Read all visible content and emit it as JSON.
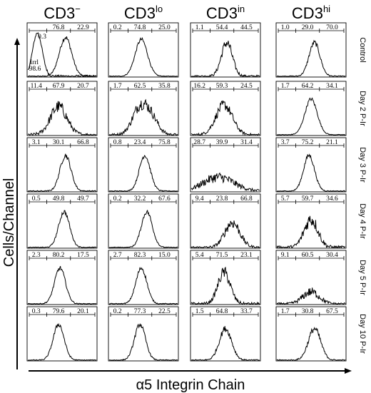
{
  "chart_data": {
    "type": "histogram-grid",
    "column_headers": [
      {
        "base": "CD3",
        "sup": "−"
      },
      {
        "base": "CD3",
        "sup": "lo"
      },
      {
        "base": "CD3",
        "sup": "in"
      },
      {
        "base": "CD3",
        "sup": "hi"
      }
    ],
    "row_labels": [
      "Control",
      "Day 2 P-Ir",
      "Day 3 P-Ir",
      "Day 4 P-Ir",
      "Day 5 P-Ir",
      "Day 10 P-Ir"
    ],
    "xlabel": "α5 Integrin Chain",
    "ylabel": "Cells/Channel",
    "panels": [
      [
        {
          "values": [
            "76.8",
            "22.9"
          ],
          "peak_pos": 0.55,
          "height": 0.72,
          "width": 0.09,
          "noise": 0.05,
          "irrelevant": {
            "labels": [
              "0.3",
              "Irrl",
              "98.6"
            ]
          }
        },
        {
          "values": [
            "0.2",
            "74.8",
            "25.0"
          ],
          "peak_pos": 0.47,
          "height": 0.68,
          "width": 0.09,
          "noise": 0.04
        },
        {
          "values": [
            "1.1",
            "54.4",
            "44.5"
          ],
          "peak_pos": 0.52,
          "height": 0.62,
          "width": 0.08,
          "noise": 0.12
        },
        {
          "values": [
            "1.0",
            "29.0",
            "70.0"
          ],
          "peak_pos": 0.55,
          "height": 0.62,
          "width": 0.08,
          "noise": 0.06
        }
      ],
      [
        {
          "values": [
            "11.4",
            "67.9",
            "20.7"
          ],
          "peak_pos": 0.45,
          "height": 0.52,
          "width": 0.12,
          "noise": 0.18
        },
        {
          "values": [
            "1.7",
            "62.5",
            "35.8"
          ],
          "peak_pos": 0.45,
          "height": 0.5,
          "width": 0.11,
          "noise": 0.16,
          "shoulder": 0.62
        },
        {
          "values": [
            "16.2",
            "59.3",
            "24.5"
          ],
          "peak_pos": 0.48,
          "height": 0.55,
          "width": 0.12,
          "noise": 0.14
        },
        {
          "values": [
            "1.7",
            "64.2",
            "34.1"
          ],
          "peak_pos": 0.5,
          "height": 0.66,
          "width": 0.09,
          "noise": 0.04
        }
      ],
      [
        {
          "values": [
            "3.1",
            "30.1",
            "66.8"
          ],
          "peak_pos": 0.55,
          "height": 0.66,
          "width": 0.08,
          "noise": 0.06
        },
        {
          "values": [
            "0.8",
            "23.4",
            "75.8"
          ],
          "peak_pos": 0.52,
          "height": 0.66,
          "width": 0.08,
          "noise": 0.05
        },
        {
          "values": [
            "28.7",
            "39.9",
            "31.4"
          ],
          "peak_pos": 0.4,
          "height": 0.26,
          "width": 0.22,
          "noise": 0.28
        },
        {
          "values": [
            "3.7",
            "75.2",
            "21.1"
          ],
          "peak_pos": 0.47,
          "height": 0.66,
          "width": 0.08,
          "noise": 0.05
        }
      ],
      [
        {
          "values": [
            "0.5",
            "49.8",
            "49.7"
          ],
          "peak_pos": 0.53,
          "height": 0.66,
          "width": 0.08,
          "noise": 0.05
        },
        {
          "values": [
            "0.2",
            "32.2",
            "67.6"
          ],
          "peak_pos": 0.55,
          "height": 0.66,
          "width": 0.08,
          "noise": 0.05
        },
        {
          "values": [
            "9.4",
            "23.8",
            "66.8"
          ],
          "peak_pos": 0.6,
          "height": 0.46,
          "width": 0.11,
          "noise": 0.18
        },
        {
          "values": [
            "5.7",
            "59.7",
            "34.6"
          ],
          "peak_pos": 0.5,
          "height": 0.52,
          "width": 0.1,
          "noise": 0.2
        }
      ],
      [
        {
          "values": [
            "2.3",
            "80.2",
            "17.5"
          ],
          "peak_pos": 0.47,
          "height": 0.66,
          "width": 0.08,
          "noise": 0.05
        },
        {
          "values": [
            "2.7",
            "82.3",
            "15.0"
          ],
          "peak_pos": 0.47,
          "height": 0.66,
          "width": 0.08,
          "noise": 0.05
        },
        {
          "values": [
            "5.4",
            "71.5",
            "23.1"
          ],
          "peak_pos": 0.48,
          "height": 0.58,
          "width": 0.09,
          "noise": 0.15
        },
        {
          "values": [
            "9.1",
            "60.5",
            "30.4"
          ],
          "peak_pos": 0.5,
          "height": 0.22,
          "width": 0.12,
          "noise": 0.3
        }
      ],
      [
        {
          "values": [
            "0.3",
            "79.6",
            "20.1"
          ],
          "peak_pos": 0.45,
          "height": 0.66,
          "width": 0.08,
          "noise": 0.05
        },
        {
          "values": [
            "0.2",
            "77.3",
            "22.5"
          ],
          "peak_pos": 0.45,
          "height": 0.66,
          "width": 0.08,
          "noise": 0.05
        },
        {
          "values": [
            "1.5",
            "64.8",
            "33.7"
          ],
          "peak_pos": 0.5,
          "height": 0.58,
          "width": 0.09,
          "noise": 0.08
        },
        {
          "values": [
            "1.7",
            "30.8",
            "67.5"
          ],
          "peak_pos": 0.55,
          "height": 0.58,
          "width": 0.09,
          "noise": 0.08
        }
      ]
    ]
  }
}
